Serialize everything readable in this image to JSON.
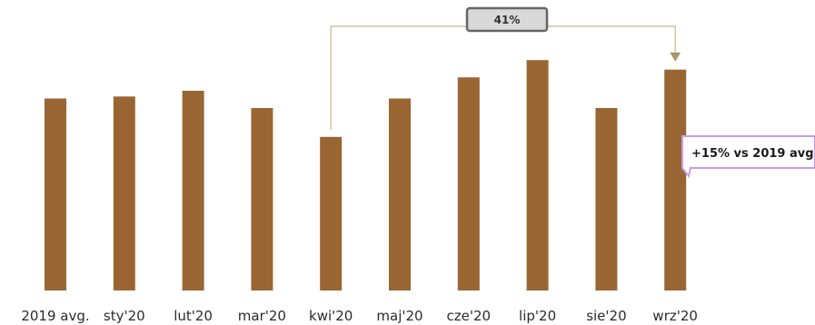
{
  "chart_data": {
    "type": "bar",
    "categories": [
      "2019 avg.",
      "sty'20",
      "lut'20",
      "mar'20",
      "kwi'20",
      "maj'20",
      "cze'20",
      "lip'20",
      "sie'20",
      "wrz'20"
    ],
    "values": [
      100,
      101,
      104,
      95,
      80,
      100,
      111,
      120,
      95,
      115
    ],
    "title": "",
    "xlabel": "",
    "ylabel": "",
    "ylim": [
      0,
      130
    ],
    "bar_color": "#996633",
    "annotations": {
      "growth_label": "41%",
      "callout": "+15% vs 2019 avg"
    }
  },
  "colors": {
    "bracket": "#c8b98a",
    "badge_fill": "#d9d9d9",
    "badge_border": "#666666",
    "callout_border": "#cc99ee"
  }
}
